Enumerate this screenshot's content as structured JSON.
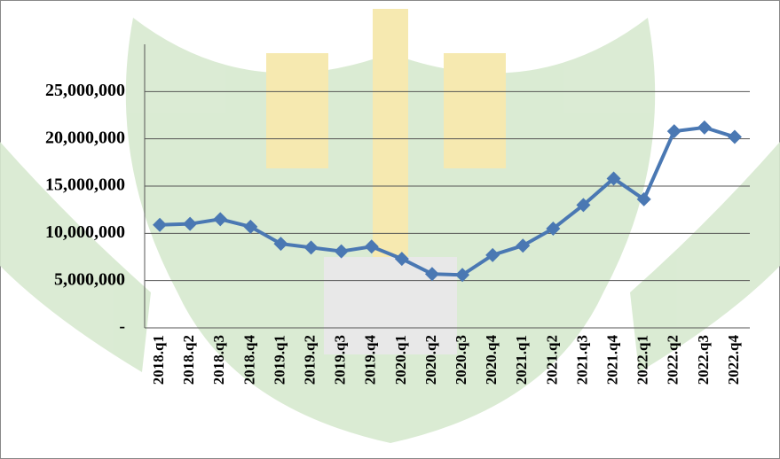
{
  "chart_data": {
    "type": "line",
    "categories": [
      "2018.q1",
      "2018.q2",
      "2018.q3",
      "2018.q4",
      "2019.q1",
      "2019.q2",
      "2019.q3",
      "2019.q4",
      "2020.q1",
      "2020.q2",
      "2020.q3",
      "2020.q4",
      "2021.q1",
      "2021.q2",
      "2021.q3",
      "2021.q4",
      "2022.q1",
      "2022.q2",
      "2022.q3",
      "2022.q4"
    ],
    "values": [
      10900000,
      11000000,
      11500000,
      10700000,
      8900000,
      8500000,
      8100000,
      8600000,
      7300000,
      5700000,
      5600000,
      7700000,
      8700000,
      10500000,
      13000000,
      15800000,
      13600000,
      20800000,
      21200000,
      20200000
    ],
    "color": "#4a78b3",
    "ylim": [
      0,
      30000000
    ],
    "yticks": [
      {
        "value": 0,
        "label": "-"
      },
      {
        "value": 5000000,
        "label": "5,000,000"
      },
      {
        "value": 10000000,
        "label": "10,000,000"
      },
      {
        "value": 15000000,
        "label": "15,000,000"
      },
      {
        "value": 20000000,
        "label": "20,000,000"
      },
      {
        "value": 25000000,
        "label": "25,000,000"
      }
    ],
    "grid": true
  }
}
